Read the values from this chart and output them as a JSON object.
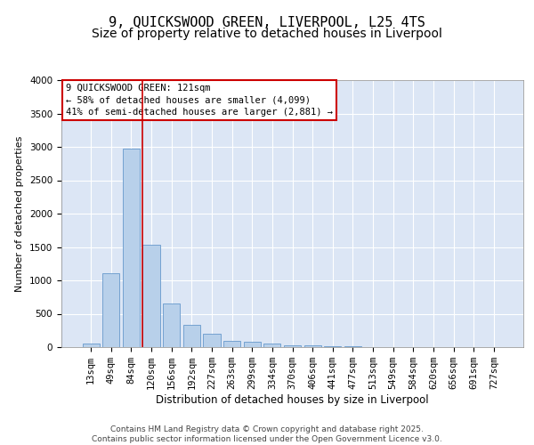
{
  "title": "9, QUICKSWOOD GREEN, LIVERPOOL, L25 4TS",
  "subtitle": "Size of property relative to detached houses in Liverpool",
  "xlabel": "Distribution of detached houses by size in Liverpool",
  "ylabel": "Number of detached properties",
  "bar_labels": [
    "13sqm",
    "49sqm",
    "84sqm",
    "120sqm",
    "156sqm",
    "192sqm",
    "227sqm",
    "263sqm",
    "299sqm",
    "334sqm",
    "370sqm",
    "406sqm",
    "441sqm",
    "477sqm",
    "513sqm",
    "549sqm",
    "584sqm",
    "620sqm",
    "656sqm",
    "691sqm",
    "727sqm"
  ],
  "bar_values": [
    55,
    1110,
    2980,
    1530,
    650,
    330,
    200,
    100,
    75,
    50,
    30,
    25,
    20,
    10,
    5,
    5,
    5,
    3,
    2,
    2,
    2
  ],
  "bar_color": "#b8d0ea",
  "bar_edgecolor": "#6699cc",
  "vline_color": "#cc0000",
  "annotation_text": "9 QUICKSWOOD GREEN: 121sqm\n← 58% of detached houses are smaller (4,099)\n41% of semi-detached houses are larger (2,881) →",
  "annotation_box_color": "#ffffff",
  "annotation_box_edgecolor": "#cc0000",
  "ylim": [
    0,
    4000
  ],
  "background_color": "#dce6f5",
  "footer_text": "Contains HM Land Registry data © Crown copyright and database right 2025.\nContains public sector information licensed under the Open Government Licence v3.0.",
  "title_fontsize": 11,
  "subtitle_fontsize": 10,
  "xlabel_fontsize": 8.5,
  "ylabel_fontsize": 8,
  "tick_fontsize": 7.5,
  "annotation_fontsize": 7.5,
  "footer_fontsize": 6.5
}
